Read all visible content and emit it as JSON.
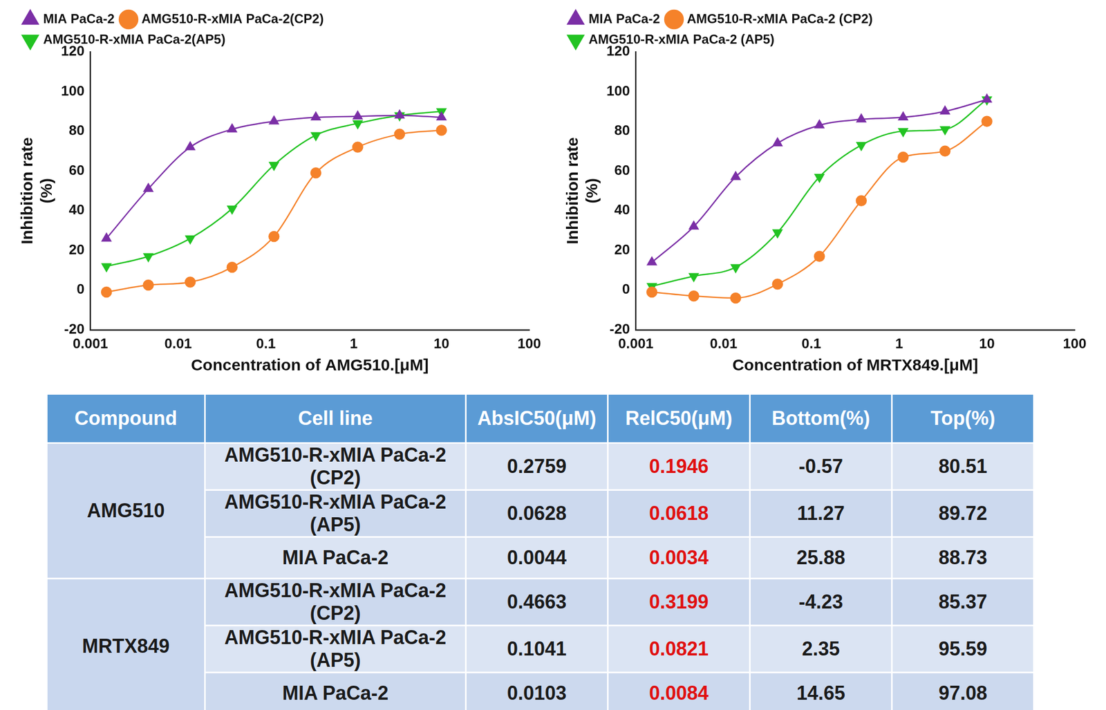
{
  "chart_data": [
    {
      "type": "line",
      "x_label": "Concentration of AMG510.[μM]",
      "y_label": [
        "Inhibition rate",
        "(%)"
      ],
      "x": [
        0.001524,
        0.004572,
        0.01372,
        0.04115,
        0.1235,
        0.3704,
        1.111,
        3.333,
        10
      ],
      "series": [
        {
          "name": "MIA PaCa-2",
          "color": "#7b2fa6",
          "marker": "triangle",
          "line_style": "solid",
          "values": [
            26,
            51,
            72,
            81,
            85,
            87,
            87.5,
            88,
            87
          ]
        },
        {
          "name": "AMG510-R-xMIA PaCa-2(CP2)",
          "color": "#f5822a",
          "marker": "circle",
          "line_style": "solid",
          "values": [
            -1,
            2.5,
            4,
            11.5,
            27,
            59,
            72,
            78.5,
            80.5
          ]
        },
        {
          "name": "AMG510-R-xMIA PaCa-2(AP5)",
          "color": "#22c322",
          "marker": "triangle-down",
          "line_style": "solid",
          "values": [
            12,
            17,
            26,
            41,
            63,
            78,
            84,
            88,
            90
          ]
        }
      ],
      "xlim": [
        0.001,
        100
      ],
      "xticks": [
        0.001,
        0.01,
        0.1,
        1,
        10,
        100
      ],
      "ylim": [
        -20,
        120
      ],
      "yticks": [
        -20,
        0,
        20,
        40,
        60,
        80,
        100,
        120
      ],
      "log": "x",
      "grid": false,
      "legend": "top-left"
    },
    {
      "type": "line",
      "x_label": "Concentration of MRTX849.[μM]",
      "y_label": [
        "Inhibition rate",
        "(%)"
      ],
      "x": [
        0.001524,
        0.004572,
        0.01372,
        0.04115,
        0.1235,
        0.3704,
        1.111,
        3.333,
        10
      ],
      "series": [
        {
          "name": "MIA PaCa-2",
          "color": "#7b2fa6",
          "marker": "triangle",
          "line_style": "solid",
          "values": [
            14,
            32,
            57,
            74,
            83,
            86,
            87,
            90,
            96
          ]
        },
        {
          "name": "AMG510-R-xMIA PaCa-2 (CP2)",
          "color": "#f5822a",
          "marker": "circle",
          "line_style": "solid",
          "values": [
            -1,
            -3,
            -4,
            3,
            17,
            45,
            67,
            70,
            85
          ]
        },
        {
          "name": "AMG510-R-xMIA PaCa-2 (AP5)",
          "color": "#22c322",
          "marker": "triangle-down",
          "line_style": "solid",
          "values": [
            2,
            7,
            11.5,
            29,
            57,
            73,
            80,
            81,
            96
          ]
        }
      ],
      "xlim": [
        0.001,
        100
      ],
      "xticks": [
        0.001,
        0.01,
        0.1,
        1,
        10,
        100
      ],
      "ylim": [
        -20,
        120
      ],
      "yticks": [
        -20,
        0,
        20,
        40,
        60,
        80,
        100,
        120
      ],
      "log": "x",
      "grid": false,
      "legend": "top-left"
    }
  ],
  "table": {
    "header": [
      "Compound",
      "Cell line",
      "AbsIC50(μM)",
      "RelC50(μM)",
      "Bottom(%)",
      "Top(%)"
    ],
    "groups": [
      {
        "compound": "AMG510",
        "rows": [
          [
            "AMG510-R-xMIA PaCa-2 (CP2)",
            "0.2759",
            "0.1946",
            "-0.57",
            "80.51"
          ],
          [
            "AMG510-R-xMIA PaCa-2 (AP5)",
            "0.0628",
            "0.0618",
            "11.27",
            "89.72"
          ],
          [
            "MIA PaCa-2",
            "0.0044",
            "0.0034",
            "25.88",
            "88.73"
          ]
        ]
      },
      {
        "compound": "MRTX849",
        "rows": [
          [
            "AMG510-R-xMIA PaCa-2 (CP2)",
            "0.4663",
            "0.3199",
            "-4.23",
            "85.37"
          ],
          [
            "AMG510-R-xMIA PaCa-2 (AP5)",
            "0.1041",
            "0.0821",
            "2.35",
            "95.59"
          ],
          [
            "MIA PaCa-2",
            "0.0103",
            "0.0084",
            "14.65",
            "97.08"
          ]
        ]
      }
    ]
  }
}
